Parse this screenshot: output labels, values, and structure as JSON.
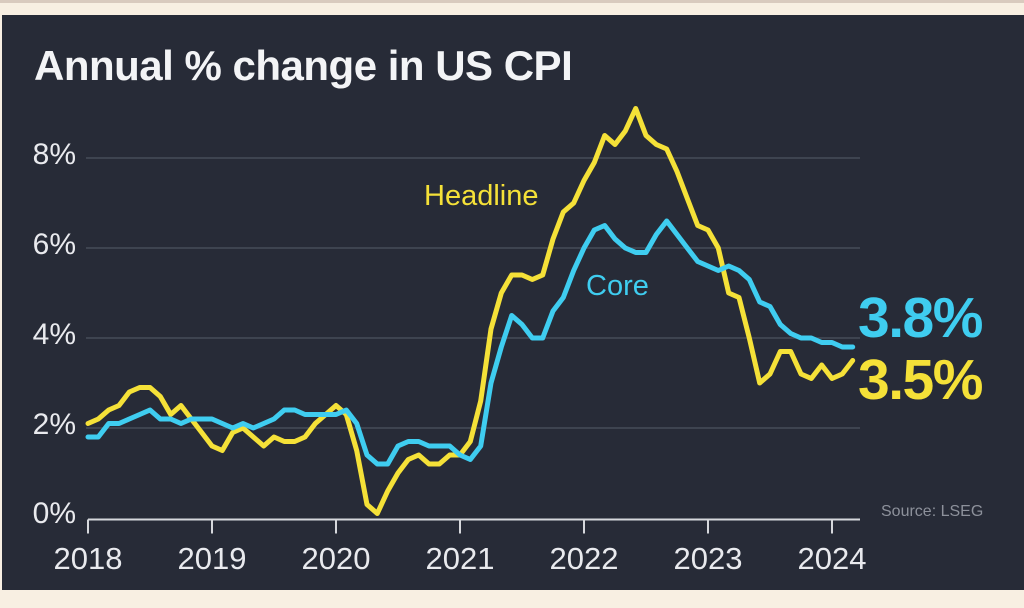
{
  "colors": {
    "background": "#272b37",
    "frame": "#f8efe2",
    "frame_top_line": "#d9cabe",
    "grid": "#474c58",
    "axis": "#d6d8dc",
    "text": "#f3f4f6",
    "tick_text": "#e9eaee",
    "muted": "#8d919b"
  },
  "chart_data": {
    "type": "line",
    "title": "Annual % change in US CPI",
    "source": "Source: LSEG",
    "x_unit": "month",
    "x_range": [
      "2018-01",
      "2024-03"
    ],
    "x_tick_labels": [
      "2018",
      "2019",
      "2020",
      "2021",
      "2022",
      "2023",
      "2024"
    ],
    "y_tick_labels": [
      "0%",
      "2%",
      "4%",
      "6%",
      "8%"
    ],
    "y_tick_values": [
      0,
      2,
      4,
      6,
      8
    ],
    "ylim": [
      0,
      9.5
    ],
    "grid": "horizontal",
    "legend_position": "inline-annotations",
    "series": [
      {
        "name": "Headline",
        "color": "#f5e138",
        "end_label": "3.5%",
        "values": [
          2.1,
          2.2,
          2.4,
          2.5,
          2.8,
          2.9,
          2.9,
          2.7,
          2.3,
          2.5,
          2.2,
          1.9,
          1.6,
          1.5,
          1.9,
          2.0,
          1.8,
          1.6,
          1.8,
          1.7,
          1.7,
          1.8,
          2.1,
          2.3,
          2.5,
          2.3,
          1.5,
          0.3,
          0.1,
          0.6,
          1.0,
          1.3,
          1.4,
          1.2,
          1.2,
          1.4,
          1.4,
          1.7,
          2.6,
          4.2,
          5.0,
          5.4,
          5.4,
          5.3,
          5.4,
          6.2,
          6.8,
          7.0,
          7.5,
          7.9,
          8.5,
          8.3,
          8.6,
          9.1,
          8.5,
          8.3,
          8.2,
          7.7,
          7.1,
          6.5,
          6.4,
          6.0,
          5.0,
          4.9,
          4.0,
          3.0,
          3.2,
          3.7,
          3.7,
          3.2,
          3.1,
          3.4,
          3.1,
          3.2,
          3.5
        ]
      },
      {
        "name": "Core",
        "color": "#3fcdf0",
        "end_label": "3.8%",
        "values": [
          1.8,
          1.8,
          2.1,
          2.1,
          2.2,
          2.3,
          2.4,
          2.2,
          2.2,
          2.1,
          2.2,
          2.2,
          2.2,
          2.1,
          2.0,
          2.1,
          2.0,
          2.1,
          2.2,
          2.4,
          2.4,
          2.3,
          2.3,
          2.3,
          2.3,
          2.4,
          2.1,
          1.4,
          1.2,
          1.2,
          1.6,
          1.7,
          1.7,
          1.6,
          1.6,
          1.6,
          1.4,
          1.3,
          1.6,
          3.0,
          3.8,
          4.5,
          4.3,
          4.0,
          4.0,
          4.6,
          4.9,
          5.5,
          6.0,
          6.4,
          6.5,
          6.2,
          6.0,
          5.9,
          5.9,
          6.3,
          6.6,
          6.3,
          6.0,
          5.7,
          5.6,
          5.5,
          5.6,
          5.5,
          5.3,
          4.8,
          4.7,
          4.3,
          4.1,
          4.0,
          4.0,
          3.9,
          3.9,
          3.8,
          3.8
        ]
      }
    ]
  }
}
